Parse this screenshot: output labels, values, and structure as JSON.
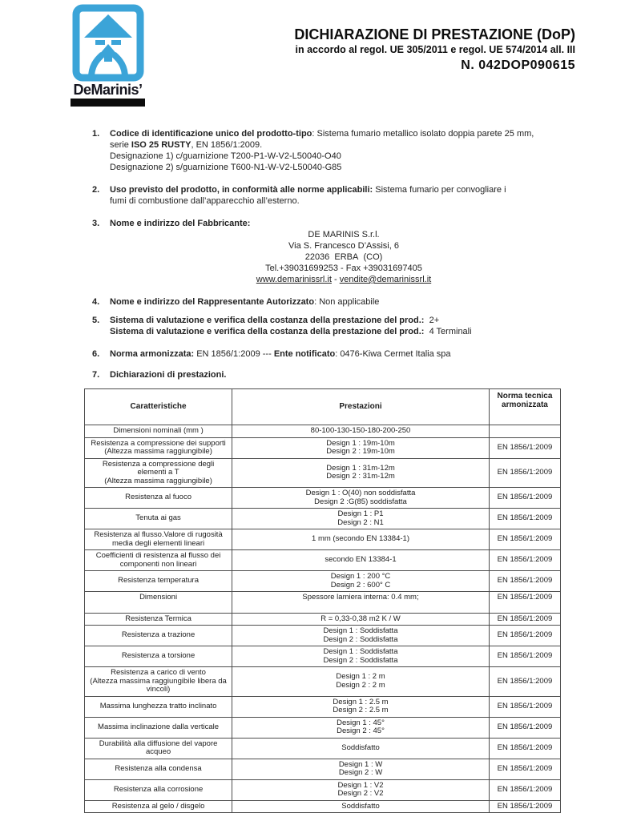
{
  "logo": {
    "brand": "DeMarinis’",
    "blue": "#3ba4d8",
    "icon": "chimney-arrow-icon"
  },
  "header": {
    "title": "DICHIARAZIONE DI PRESTAZIONE (DoP)",
    "subtitle": "in accordo al regol. UE 305/2011 e regol. UE 574/2014 all. III",
    "doc_number": "N. 042DOP090615"
  },
  "items": [
    {
      "number": "1.",
      "segments": [
        {
          "text": "Codice di identificazione unico del prodotto-tipo",
          "bold": true
        },
        {
          "text": ": Sistema fumario metallico isolato doppia parete 25 mm,\nserie "
        },
        {
          "text": "ISO 25 RUSTY",
          "bold": true
        },
        {
          "text": ", EN 1856/1:2009."
        }
      ],
      "extra_lines": [
        "Designazione 1) c/guarnizione T200-P1-W-V2-L50040-O40",
        "Designazione 2) s/guarnizione T600-N1-W-V2-L50040-G85"
      ]
    },
    {
      "number": "2.",
      "segments": [
        {
          "text": "Uso previsto del prodotto, in conformità alle norme applicabili:",
          "bold": true
        },
        {
          "text": " Sistema fumario per convogliare i\nfumi di combustione dall’apparecchio all’esterno."
        }
      ]
    },
    {
      "number": "3.",
      "segments": [
        {
          "text": " Nome e indirizzo del Fabbricante:",
          "bold": true
        }
      ],
      "centered": [
        [
          {
            "text": "DE MARINIS S.r.l."
          }
        ],
        [
          {
            "text": "Via S. Francesco D’Assisi, 6"
          }
        ],
        [
          {
            "text": "22036  ERBA  (CO)"
          }
        ],
        [
          {
            "text": "Tel.+39031699253 - Fax +39031697405"
          }
        ],
        [
          {
            "text": "www.demarinissrl.it",
            "underline": true,
            "link": true
          },
          {
            "text": " - "
          },
          {
            "text": "vendite@demarinissrl.it",
            "underline": true,
            "link": true
          }
        ]
      ]
    },
    {
      "number": "4.",
      "style": "tight",
      "segments": [
        {
          "text": "Nome e indirizzo del Rappresentante Autorizzato",
          "bold": true
        },
        {
          "text": ": Non applicabile"
        }
      ]
    },
    {
      "number": "5.",
      "segments": [
        {
          "text": "Sistema di valutazione e verifica della costanza della prestazione del prod.:",
          "bold": true
        },
        {
          "text": "  2+\n"
        },
        {
          "text": "Sistema di valutazione e verifica della costanza della prestazione del prod.:",
          "bold": true
        },
        {
          "text": "  4 Terminali"
        }
      ]
    },
    {
      "number": "6.",
      "style": "tight2",
      "segments": [
        {
          "text": "Norma armonizzata:",
          "bold": true
        },
        {
          "text": " EN 1856/1:2009 --- "
        },
        {
          "text": "Ente notificato",
          "bold": true
        },
        {
          "text": ": 0476-Kiwa Cermet Italia spa"
        }
      ]
    },
    {
      "number": "7.",
      "style": "last",
      "segments": [
        {
          "text": "Dichiarazioni di prestazioni.",
          "bold": true
        }
      ]
    }
  ],
  "table": {
    "headers": [
      "Caratteristiche",
      "Prestazioni",
      "Norma tecnica\narmonizzata"
    ],
    "rows": [
      {
        "caratteristica": [
          "Dimensioni nominali (mm )"
        ],
        "prestazioni": [
          "80-100-130-150-180-200-250"
        ],
        "norma": ""
      },
      {
        "caratteristica": [
          "Resistenza a compressione dei supporti",
          "(Altezza massima raggiungibile)"
        ],
        "prestazioni": [
          "Design 1 : 19m-10m",
          "Design 2 : 19m-10m"
        ],
        "norma": "EN 1856/1:2009"
      },
      {
        "caratteristica": [
          "Resistenza a compressione degli",
          "elementi a T",
          "(Altezza massima raggiungibile)"
        ],
        "prestazioni": [
          "Design 1 : 31m-12m",
          "Design 2 : 31m-12m"
        ],
        "norma": "EN 1856/1:2009"
      },
      {
        "caratteristica": [
          "Resistenza al fuoco"
        ],
        "prestazioni": [
          "Design 1 : O(40) non soddisfatta",
          "Design 2 :G(85) soddisfatta"
        ],
        "norma": "EN 1856/1:2009"
      },
      {
        "caratteristica": [
          "Tenuta ai gas"
        ],
        "prestazioni": [
          "Design 1 : P1",
          "Design 2 : N1"
        ],
        "norma": "EN 1856/1:2009"
      },
      {
        "caratteristica": [
          "Resistenza al flusso.Valore di rugosità",
          "media degli elementi lineari"
        ],
        "prestazioni": [
          "1 mm (secondo EN 13384-1)"
        ],
        "norma": "EN 1856/1:2009"
      },
      {
        "caratteristica": [
          "Coefficienti di resistenza al flusso dei",
          "componenti non lineari"
        ],
        "prestazioni": [
          "secondo EN 13384-1"
        ],
        "norma": "EN 1856/1:2009"
      },
      {
        "caratteristica": [
          "Resistenza temperatura"
        ],
        "prestazioni": [
          "Design 1 : 200 °C",
          "Design 2 : 600° C"
        ],
        "norma": "EN 1856/1:2009"
      },
      {
        "caratteristica": [
          "Dimensioni"
        ],
        "prestazioni": [
          "Spessore lamiera interna: 0.4 mm;"
        ],
        "norma": "EN 1856/1:2009",
        "tall": true
      },
      {
        "caratteristica": [
          "Resistenza Termica"
        ],
        "prestazioni": [
          "R = 0,33-0,38 m2 K / W"
        ],
        "norma": "EN 1856/1:2009"
      },
      {
        "caratteristica": [
          "Resistenza a trazione"
        ],
        "prestazioni": [
          "Design 1 : Soddisfatta",
          "Design 2 : Soddisfatta"
        ],
        "norma": "EN 1856/1:2009"
      },
      {
        "caratteristica": [
          "Resistenza a torsione"
        ],
        "prestazioni": [
          "Design 1 : Soddisfatta",
          "Design 2 : Soddisfatta"
        ],
        "norma": "EN 1856/1:2009"
      },
      {
        "caratteristica": [
          "Resistenza a carico di vento",
          "(Altezza massima raggiungibile libera da",
          "vincoli)"
        ],
        "prestazioni": [
          "Design 1 : 2 m",
          "Design 2 : 2 m"
        ],
        "norma": "EN 1856/1:2009"
      },
      {
        "caratteristica": [
          "Massima lunghezza tratto inclinato"
        ],
        "prestazioni": [
          "Design 1 : 2.5 m",
          "Design 2  : 2.5 m"
        ],
        "norma": "EN 1856/1:2009"
      },
      {
        "caratteristica": [
          "Massima inclinazione dalla verticale"
        ],
        "prestazioni": [
          "Design 1 : 45°",
          "Design 2 : 45°"
        ],
        "norma": "EN 1856/1:2009"
      },
      {
        "caratteristica": [
          "Durabilità alla diffusione del vapore",
          "acqueo"
        ],
        "prestazioni": [
          "Soddisfatto"
        ],
        "norma": "EN 1856/1:2009"
      },
      {
        "caratteristica": [
          "Resistenza alla condensa"
        ],
        "prestazioni": [
          "Design 1 : W",
          "Design 2 : W"
        ],
        "norma": "EN 1856/1:2009"
      },
      {
        "caratteristica": [
          "Resistenza alla corrosione"
        ],
        "prestazioni": [
          "Design 1 : V2",
          "Design 2 : V2"
        ],
        "norma": "EN 1856/1:2009"
      },
      {
        "caratteristica": [
          "Resistenza al gelo / disgelo"
        ],
        "prestazioni": [
          "Soddisfatto"
        ],
        "norma": "EN 1856/1:2009"
      }
    ]
  }
}
